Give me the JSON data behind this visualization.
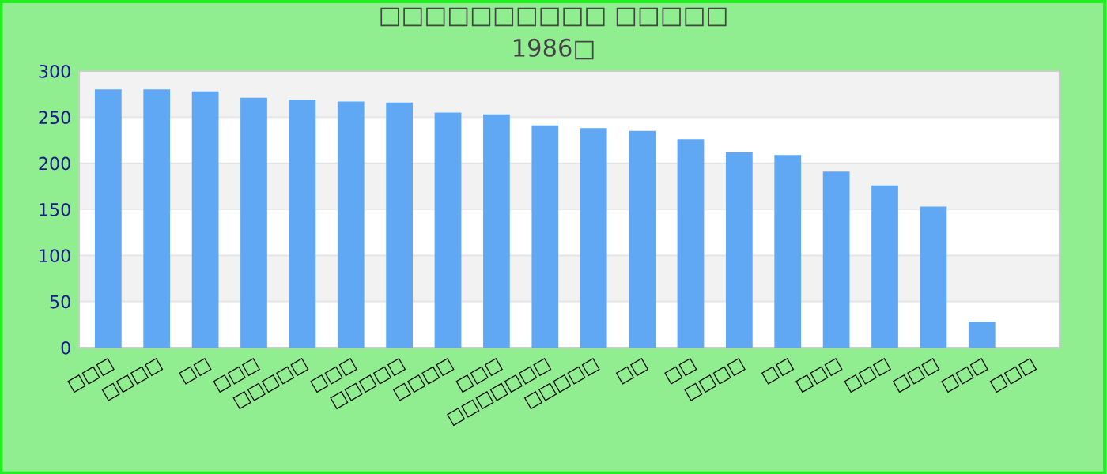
{
  "chart_data": {
    "type": "bar",
    "title": "□□□□□□□□□□ □□□□□",
    "subtitle": "1986□",
    "categories": [
      "□□□",
      "□□□□",
      "□□",
      "□□□",
      "□□□□□",
      "□□□",
      "□□□□□",
      "□□□□",
      "□□□",
      "□□□□□□□",
      "□□□□□",
      "□□",
      "□□",
      "□□□□",
      "□□",
      "□□□",
      "□□□",
      "□□□",
      "□□□",
      "□□□"
    ],
    "values": [
      280,
      280,
      278,
      271,
      269,
      267,
      266,
      255,
      253,
      241,
      238,
      235,
      226,
      212,
      209,
      191,
      176,
      153,
      28,
      null
    ],
    "color": "#60a8f4",
    "ylim": [
      0,
      300
    ],
    "yticks": [
      0,
      50,
      100,
      150,
      200,
      250,
      300
    ],
    "grid": "y",
    "legend": false
  }
}
